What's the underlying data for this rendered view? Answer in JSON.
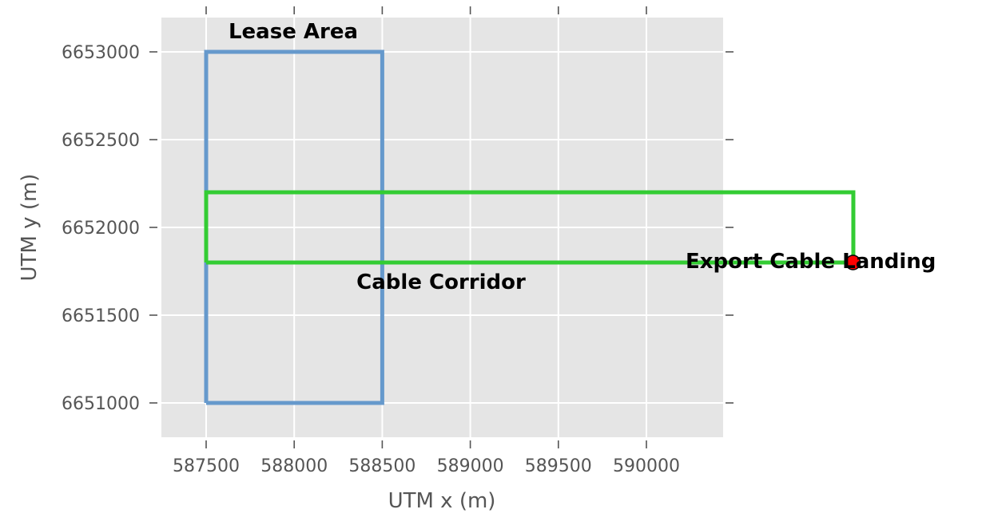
{
  "chart_data": {
    "type": "line",
    "title": "",
    "xlabel": "UTM x (m)",
    "ylabel": "UTM y (m)",
    "xlim": [
      587250,
      590450
    ],
    "ylim": [
      6650800,
      6653200
    ],
    "grid": true,
    "x_ticks": [
      587500,
      588000,
      588500,
      589000,
      589500,
      590000
    ],
    "y_ticks": [
      6651000,
      6651500,
      6652000,
      6652500,
      6653000
    ],
    "series": [
      {
        "x": [
          587500,
          588500,
          588500,
          587500,
          587500
        ],
        "y": [
          6651000,
          6651000,
          6653000,
          6653000,
          6651000
        ],
        "color": "#6699CC"
      },
      {
        "x": [
          587500,
          591175,
          591175,
          587500,
          587500
        ],
        "y": [
          6651800,
          6651800,
          6652200,
          6652200,
          6651800
        ],
        "color": "#33CC33"
      }
    ],
    "points": [
      {
        "x": 590175,
        "y": 6651800,
        "color": "#FF0000"
      }
    ],
    "annotations": [
      {
        "text": "Lease Area",
        "x": 587900,
        "y": 6653120
      },
      {
        "text": "Cable Corridor",
        "x": 588750,
        "y": 6651670
      },
      {
        "text": "Export Cable Landing",
        "x": 590225,
        "y": 6651800
      }
    ],
    "background": "#E5E5E5",
    "grid_color": "#FFFFFF"
  }
}
